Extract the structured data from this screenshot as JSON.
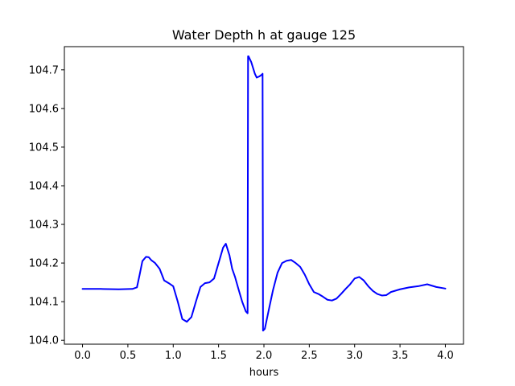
{
  "chart_data": {
    "type": "line",
    "title": "Water Depth h at gauge 125",
    "xlabel": "hours",
    "ylabel": "",
    "xlim": [
      -0.2,
      4.2
    ],
    "ylim": [
      103.99,
      104.76
    ],
    "xticks": [
      0.0,
      0.5,
      1.0,
      1.5,
      2.0,
      2.5,
      3.0,
      3.5,
      4.0
    ],
    "xtick_labels": [
      "0.0",
      "0.5",
      "1.0",
      "1.5",
      "2.0",
      "2.5",
      "3.0",
      "3.5",
      "4.0"
    ],
    "yticks": [
      104.0,
      104.1,
      104.2,
      104.3,
      104.4,
      104.5,
      104.6,
      104.7
    ],
    "ytick_labels": [
      "104.0",
      "104.1",
      "104.2",
      "104.3",
      "104.4",
      "104.5",
      "104.6",
      "104.7"
    ],
    "grid": false,
    "series": [
      {
        "color": "#0000ff",
        "x": [
          0.0,
          0.2,
          0.4,
          0.55,
          0.6,
          0.63,
          0.66,
          0.7,
          0.73,
          0.76,
          0.8,
          0.85,
          0.9,
          0.95,
          1.0,
          1.05,
          1.1,
          1.15,
          1.2,
          1.25,
          1.3,
          1.35,
          1.4,
          1.45,
          1.5,
          1.55,
          1.58,
          1.62,
          1.65,
          1.68,
          1.72,
          1.76,
          1.8,
          1.82,
          1.825,
          1.83,
          1.84,
          1.86,
          1.88,
          1.9,
          1.92,
          1.95,
          1.98,
          1.985,
          1.99,
          2.01,
          2.05,
          2.1,
          2.15,
          2.2,
          2.25,
          2.3,
          2.35,
          2.4,
          2.45,
          2.5,
          2.55,
          2.6,
          2.65,
          2.7,
          2.75,
          2.8,
          2.85,
          2.9,
          2.95,
          3.0,
          3.05,
          3.1,
          3.15,
          3.2,
          3.25,
          3.3,
          3.35,
          3.4,
          3.5,
          3.6,
          3.7,
          3.8,
          3.9,
          4.0
        ],
        "y": [
          104.133,
          104.133,
          104.132,
          104.133,
          104.137,
          104.17,
          104.205,
          104.216,
          104.215,
          104.207,
          104.2,
          104.185,
          104.155,
          104.148,
          104.14,
          104.1,
          104.055,
          104.048,
          104.06,
          104.1,
          104.138,
          104.148,
          104.15,
          104.16,
          104.2,
          104.24,
          104.25,
          104.22,
          104.185,
          104.165,
          104.132,
          104.1,
          104.075,
          104.07,
          104.735,
          104.735,
          104.73,
          104.72,
          104.705,
          104.69,
          104.68,
          104.683,
          104.688,
          104.69,
          104.025,
          104.03,
          104.075,
          104.13,
          104.175,
          104.2,
          104.206,
          104.208,
          104.2,
          104.19,
          104.17,
          104.145,
          104.125,
          104.12,
          104.113,
          104.105,
          104.103,
          104.108,
          104.12,
          104.133,
          104.145,
          104.16,
          104.164,
          104.155,
          104.14,
          104.128,
          104.12,
          104.116,
          104.117,
          104.125,
          104.132,
          104.137,
          104.14,
          104.145,
          104.138,
          104.134
        ]
      }
    ]
  }
}
